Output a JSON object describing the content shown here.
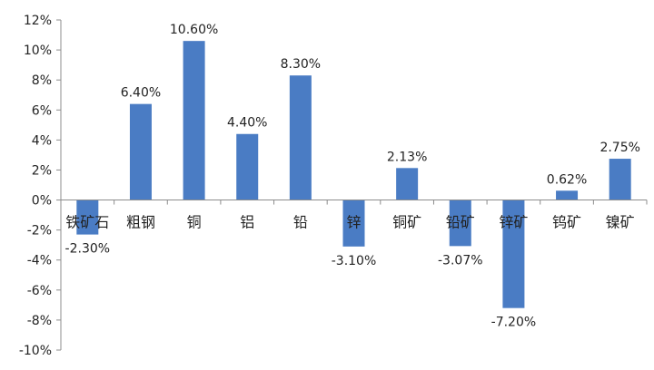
{
  "chart_data": {
    "type": "bar",
    "title": "",
    "xlabel": "",
    "ylabel": "",
    "categories": [
      "铁矿石",
      "粗钢",
      "铜",
      "铝",
      "铅",
      "锌",
      "铜矿",
      "铅矿",
      "锌矿",
      "钨矿",
      "镍矿"
    ],
    "values": [
      -2.3,
      6.4,
      10.6,
      4.4,
      8.3,
      -3.1,
      2.13,
      -3.07,
      -7.2,
      0.62,
      2.75
    ],
    "value_labels": [
      "-2.30%",
      "6.40%",
      "10.60%",
      "4.40%",
      "8.30%",
      "-3.10%",
      "2.13%",
      "-3.07%",
      "-7.20%",
      "0.62%",
      "2.75%"
    ],
    "ylim": [
      -10,
      12
    ],
    "yticks": [
      12,
      10,
      8,
      6,
      4,
      2,
      0,
      -2,
      -4,
      -6,
      -8,
      -10
    ],
    "ytick_labels": [
      "12%",
      "10%",
      "8%",
      "6%",
      "4%",
      "2%",
      "0%",
      "-2%",
      "-4%",
      "-6%",
      "-8%",
      "-10%"
    ],
    "bar_color": "#4a7cc4",
    "grid": false,
    "legend": "none"
  }
}
